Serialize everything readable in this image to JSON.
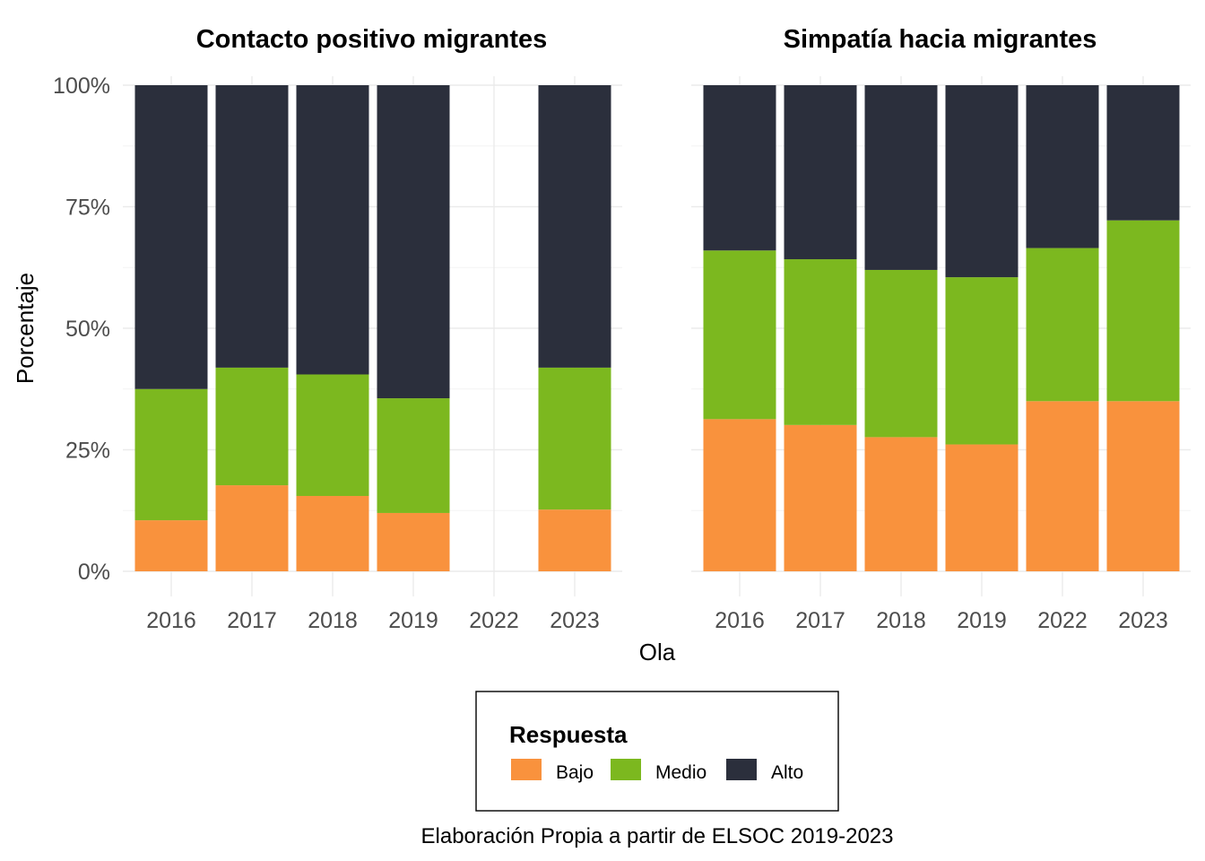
{
  "colors": {
    "Bajo": "#f9923d",
    "Medio": "#7cb81f",
    "Alto": "#2b2f3c"
  },
  "chart_data": {
    "type": "bar",
    "stacked": true,
    "normalized": true,
    "xlabel": "Ola",
    "ylabel": "Porcentaje",
    "ylim": [
      0,
      100
    ],
    "yticks": [
      "0%",
      "25%",
      "50%",
      "75%",
      "100%"
    ],
    "categories": [
      "2016",
      "2017",
      "2018",
      "2019",
      "2022",
      "2023"
    ],
    "legend": {
      "title": "Respuesta",
      "entries": [
        "Bajo",
        "Medio",
        "Alto"
      ],
      "position": "bottom"
    },
    "caption": "Elaboración Propia a partir de ELSOC 2019-2023",
    "facets": [
      {
        "title": "Contacto positivo migrantes",
        "series": [
          {
            "name": "Bajo",
            "values": [
              10.5,
              17.7,
              15.5,
              12.0,
              null,
              12.7
            ]
          },
          {
            "name": "Medio",
            "values": [
              27.0,
              24.2,
              25.0,
              23.6,
              null,
              29.2
            ]
          },
          {
            "name": "Alto",
            "values": [
              62.5,
              58.1,
              59.5,
              64.4,
              null,
              58.1
            ]
          }
        ]
      },
      {
        "title": "Simpatía hacia migrantes",
        "series": [
          {
            "name": "Bajo",
            "values": [
              31.3,
              30.1,
              27.6,
              26.1,
              35.0,
              35.0
            ]
          },
          {
            "name": "Medio",
            "values": [
              34.7,
              34.1,
              34.4,
              34.4,
              31.5,
              37.2
            ]
          },
          {
            "name": "Alto",
            "values": [
              34.0,
              35.8,
              38.0,
              39.5,
              33.5,
              27.8
            ]
          }
        ]
      }
    ]
  }
}
